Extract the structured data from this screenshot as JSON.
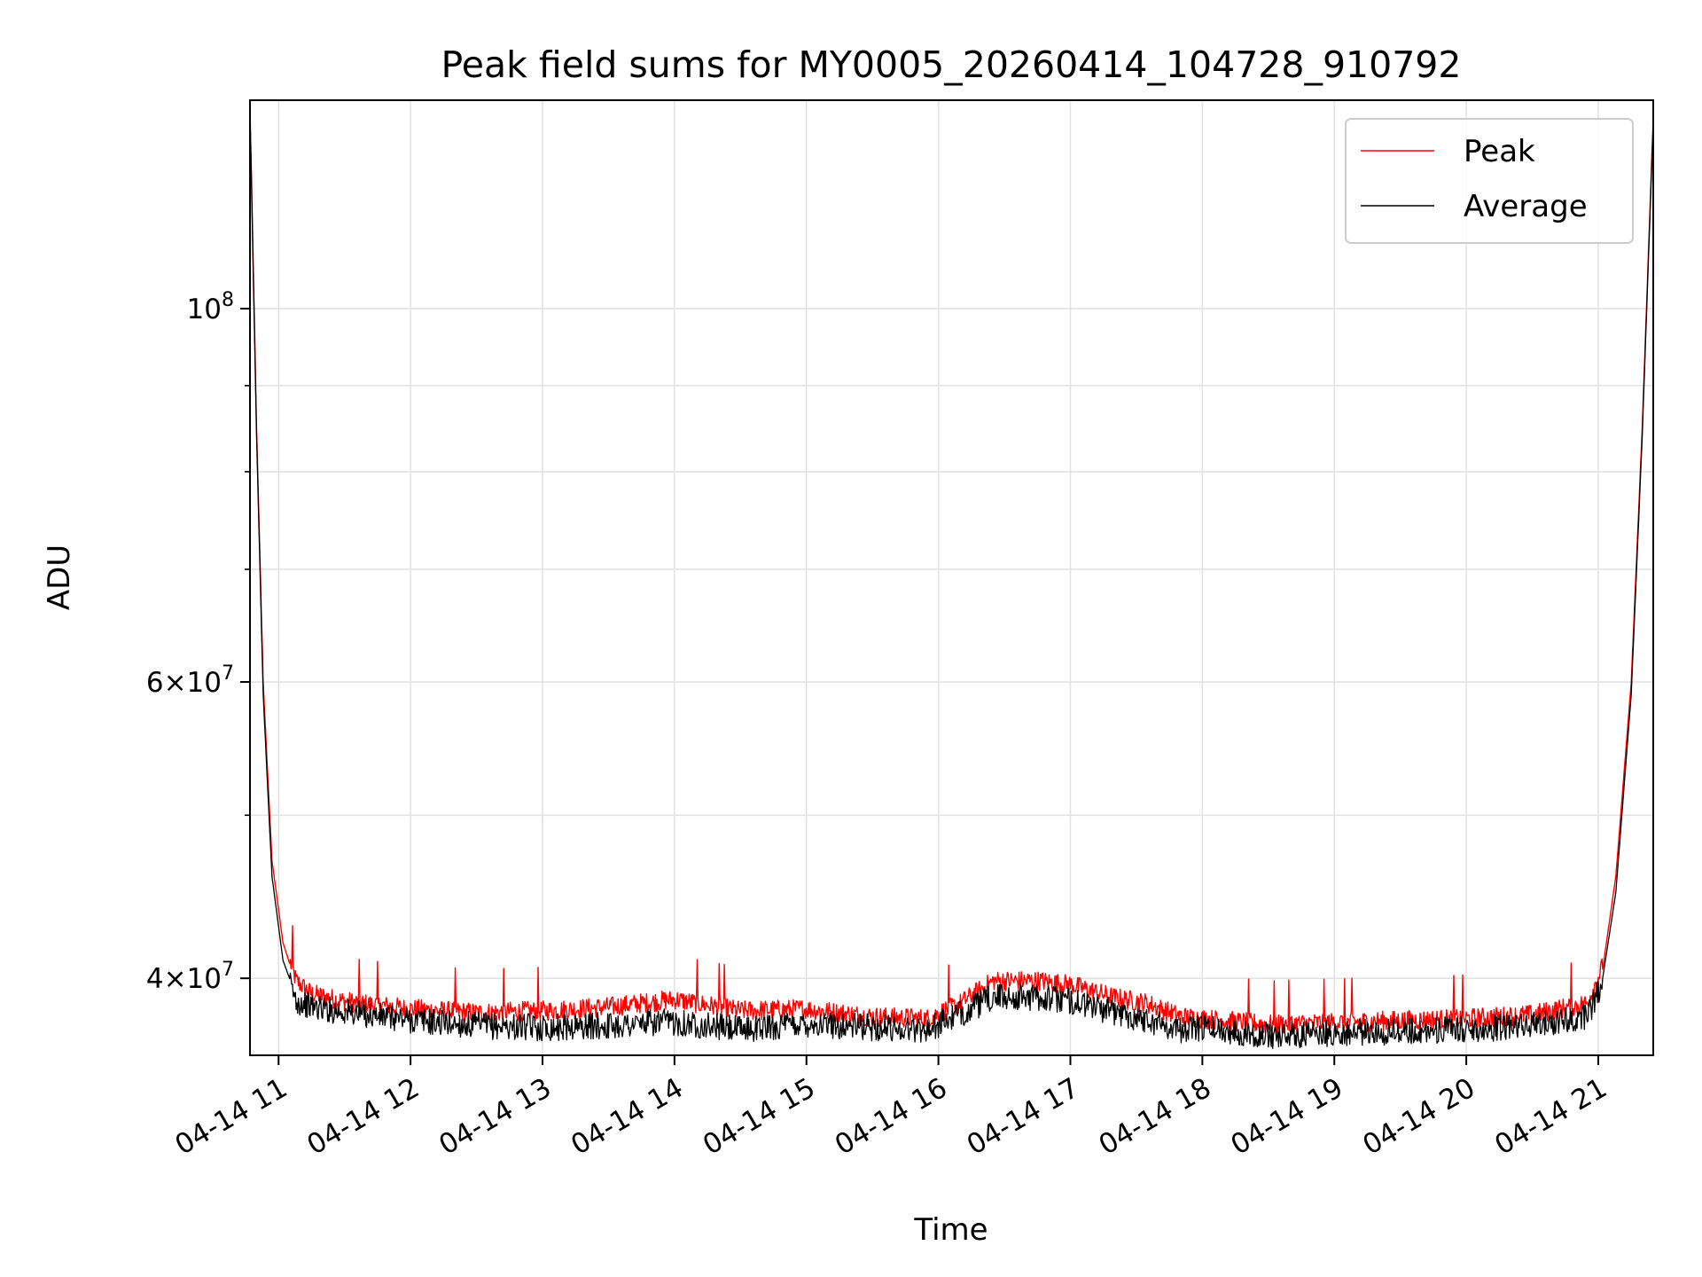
{
  "chart_data": {
    "type": "line",
    "title": "Peak field sums for MY0005_20260414_104728_910792",
    "xlabel": "Time",
    "ylabel": "ADU",
    "x_unit": "datetime",
    "xlim": [
      "2026-04-14 10:47",
      "2026-04-14 21:25"
    ],
    "yscale": "log",
    "ylim": [
      36000000,
      133000000
    ],
    "x_ticks": [
      {
        "value": "2026-04-14 11:00",
        "label": "04-14 11"
      },
      {
        "value": "2026-04-14 12:00",
        "label": "04-14 12"
      },
      {
        "value": "2026-04-14 13:00",
        "label": "04-14 13"
      },
      {
        "value": "2026-04-14 14:00",
        "label": "04-14 14"
      },
      {
        "value": "2026-04-14 15:00",
        "label": "04-14 15"
      },
      {
        "value": "2026-04-14 16:00",
        "label": "04-14 16"
      },
      {
        "value": "2026-04-14 17:00",
        "label": "04-14 17"
      },
      {
        "value": "2026-04-14 18:00",
        "label": "04-14 18"
      },
      {
        "value": "2026-04-14 19:00",
        "label": "04-14 19"
      },
      {
        "value": "2026-04-14 20:00",
        "label": "04-14 20"
      },
      {
        "value": "2026-04-14 21:00",
        "label": "04-14 21"
      }
    ],
    "y_major_ticks": [
      {
        "value": 40000000,
        "base": "4",
        "exp": "7"
      },
      {
        "value": 60000000,
        "base": "6",
        "exp": "7"
      },
      {
        "value": 100000000,
        "base": "",
        "exp": "8"
      }
    ],
    "y_minor_ticks": [
      50000000,
      70000000,
      80000000,
      90000000
    ],
    "grid": true,
    "legend_position": "top-right",
    "series": [
      {
        "name": "Peak",
        "color": "#ff0000",
        "points": [
          [
            "2026-04-14 10:47",
            132000000
          ],
          [
            "2026-04-14 10:50",
            85000000
          ],
          [
            "2026-04-14 10:53",
            60000000
          ],
          [
            "2026-04-14 10:57",
            47000000
          ],
          [
            "2026-04-14 11:02",
            42000000
          ],
          [
            "2026-04-14 11:08",
            39700000
          ],
          [
            "2026-04-14 11:15",
            39000000
          ],
          [
            "2026-04-14 11:30",
            38600000
          ],
          [
            "2026-04-14 12:00",
            38200000
          ],
          [
            "2026-04-14 12:30",
            38000000
          ],
          [
            "2026-04-14 13:00",
            38100000
          ],
          [
            "2026-04-14 13:30",
            38300000
          ],
          [
            "2026-04-14 14:00",
            38700000
          ],
          [
            "2026-04-14 14:30",
            38100000
          ],
          [
            "2026-04-14 15:00",
            38200000
          ],
          [
            "2026-04-14 15:30",
            37800000
          ],
          [
            "2026-04-14 15:55",
            37700000
          ],
          [
            "2026-04-14 16:10",
            38500000
          ],
          [
            "2026-04-14 16:25",
            39700000
          ],
          [
            "2026-04-14 16:45",
            39700000
          ],
          [
            "2026-04-14 17:00",
            39500000
          ],
          [
            "2026-04-14 17:20",
            38800000
          ],
          [
            "2026-04-14 17:35",
            38500000
          ],
          [
            "2026-04-14 17:50",
            37800000
          ],
          [
            "2026-04-14 18:00",
            37700000
          ],
          [
            "2026-04-14 18:30",
            37400000
          ],
          [
            "2026-04-14 19:00",
            37500000
          ],
          [
            "2026-04-14 19:30",
            37600000
          ],
          [
            "2026-04-14 20:00",
            37700000
          ],
          [
            "2026-04-14 20:30",
            37900000
          ],
          [
            "2026-04-14 20:55",
            38500000
          ],
          [
            "2026-04-14 21:02",
            40500000
          ],
          [
            "2026-04-14 21:08",
            46000000
          ],
          [
            "2026-04-14 21:15",
            60000000
          ],
          [
            "2026-04-14 21:20",
            85000000
          ],
          [
            "2026-04-14 21:25",
            130000000
          ]
        ]
      },
      {
        "name": "Average",
        "color": "#000000",
        "points": [
          [
            "2026-04-14 10:47",
            131000000
          ],
          [
            "2026-04-14 10:50",
            84000000
          ],
          [
            "2026-04-14 10:53",
            59000000
          ],
          [
            "2026-04-14 10:57",
            46000000
          ],
          [
            "2026-04-14 11:02",
            41000000
          ],
          [
            "2026-04-14 11:08",
            39000000
          ],
          [
            "2026-04-14 11:15",
            38700000
          ],
          [
            "2026-04-14 11:30",
            38400000
          ],
          [
            "2026-04-14 12:00",
            38000000
          ],
          [
            "2026-04-14 12:30",
            37700000
          ],
          [
            "2026-04-14 13:00",
            37600000
          ],
          [
            "2026-04-14 13:30",
            37700000
          ],
          [
            "2026-04-14 14:00",
            37900000
          ],
          [
            "2026-04-14 14:30",
            37500000
          ],
          [
            "2026-04-14 15:00",
            37800000
          ],
          [
            "2026-04-14 15:30",
            37600000
          ],
          [
            "2026-04-14 15:55",
            37500000
          ],
          [
            "2026-04-14 16:10",
            38300000
          ],
          [
            "2026-04-14 16:25",
            39200000
          ],
          [
            "2026-04-14 16:45",
            39200000
          ],
          [
            "2026-04-14 17:00",
            39000000
          ],
          [
            "2026-04-14 17:20",
            38400000
          ],
          [
            "2026-04-14 17:35",
            38000000
          ],
          [
            "2026-04-14 17:50",
            37500000
          ],
          [
            "2026-04-14 18:00",
            37600000
          ],
          [
            "2026-04-14 18:30",
            37200000
          ],
          [
            "2026-04-14 19:00",
            37300000
          ],
          [
            "2026-04-14 19:30",
            37400000
          ],
          [
            "2026-04-14 20:00",
            37500000
          ],
          [
            "2026-04-14 20:30",
            37700000
          ],
          [
            "2026-04-14 20:55",
            38200000
          ],
          [
            "2026-04-14 21:02",
            40000000
          ],
          [
            "2026-04-14 21:08",
            45000000
          ],
          [
            "2026-04-14 21:15",
            59000000
          ],
          [
            "2026-04-14 21:20",
            84000000
          ],
          [
            "2026-04-14 21:25",
            129000000
          ]
        ]
      }
    ]
  }
}
